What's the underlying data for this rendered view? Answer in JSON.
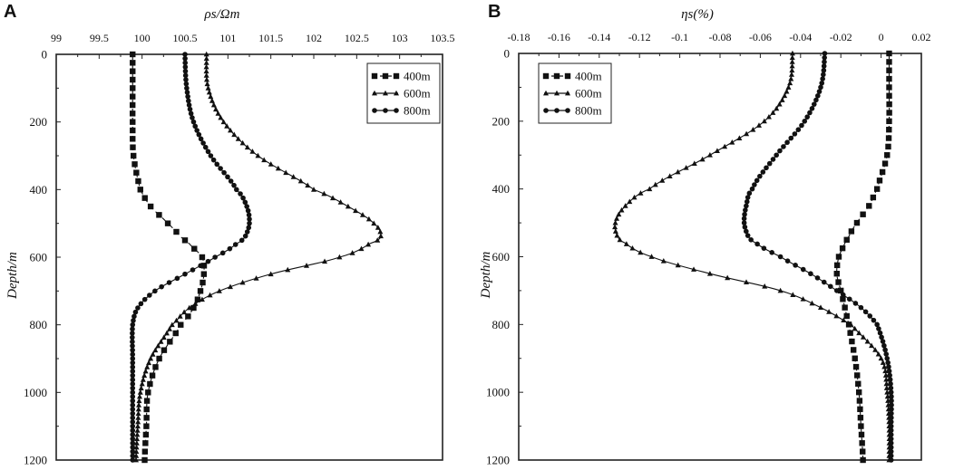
{
  "panel_letters": [
    "A",
    "B"
  ],
  "chart_data": [
    {
      "type": "line",
      "panel": "A",
      "xlabel": "ρs/Ωm",
      "ylabel": "Depth/m",
      "xlim": [
        99,
        103.5
      ],
      "ylim": [
        0,
        1200
      ],
      "y_inverted": true,
      "x_axis_position": "top",
      "xticks": [
        "99",
        "99.5",
        "100",
        "100.5",
        "101",
        "101.5",
        "102",
        "102.5",
        "103",
        "103.5"
      ],
      "yticks": [
        "0",
        "200",
        "400",
        "600",
        "800",
        "1000",
        "1200"
      ],
      "legend_position": "top-right",
      "y": [
        0,
        100,
        200,
        300,
        400,
        450,
        500,
        540,
        560,
        600,
        650,
        700,
        750,
        800,
        900,
        1000,
        1100,
        1200
      ],
      "series": [
        {
          "name": "400m",
          "marker": "square",
          "dash": "6,4",
          "values": [
            99.89,
            99.89,
            99.89,
            99.9,
            99.98,
            100.1,
            100.3,
            100.45,
            100.55,
            100.7,
            100.72,
            100.68,
            100.6,
            100.45,
            100.2,
            100.07,
            100.05,
            100.03
          ]
        },
        {
          "name": "600m",
          "marker": "triangle",
          "dash": "",
          "values": [
            100.75,
            100.77,
            100.95,
            101.35,
            102.0,
            102.4,
            102.7,
            102.78,
            102.65,
            102.3,
            101.5,
            100.9,
            100.55,
            100.35,
            100.1,
            99.98,
            99.95,
            99.93
          ]
        },
        {
          "name": "800m",
          "marker": "circle",
          "dash": "",
          "values": [
            100.5,
            100.52,
            100.6,
            100.8,
            101.1,
            101.22,
            101.25,
            101.2,
            101.1,
            100.85,
            100.5,
            100.15,
            99.95,
            99.89,
            99.89,
            99.89,
            99.89,
            99.89
          ]
        }
      ]
    },
    {
      "type": "line",
      "panel": "B",
      "xlabel": "ηs(%)",
      "ylabel": "Depth/m",
      "xlim": [
        -0.18,
        0.02
      ],
      "ylim": [
        0,
        1200
      ],
      "y_inverted": true,
      "x_axis_position": "top",
      "xticks": [
        "-0.18",
        "-0.16",
        "-0.14",
        "-0.12",
        "-0.1",
        "-0.08",
        "-0.06",
        "-0.04",
        "-0.02",
        "0",
        "0.02"
      ],
      "yticks": [
        "0",
        "200",
        "400",
        "600",
        "800",
        "1000",
        "1200"
      ],
      "legend_position": "top-left",
      "y": [
        0,
        100,
        200,
        300,
        400,
        450,
        500,
        540,
        560,
        600,
        650,
        700,
        750,
        800,
        900,
        1000,
        1100,
        1200
      ],
      "series": [
        {
          "name": "400m",
          "marker": "square",
          "dash": "6,4",
          "values": [
            0.004,
            0.004,
            0.004,
            0.003,
            -0.002,
            -0.006,
            -0.012,
            -0.016,
            -0.018,
            -0.021,
            -0.022,
            -0.02,
            -0.018,
            -0.016,
            -0.013,
            -0.011,
            -0.01,
            -0.009
          ]
        },
        {
          "name": "600m",
          "marker": "triangle",
          "dash": "",
          "values": [
            -0.044,
            -0.046,
            -0.058,
            -0.085,
            -0.115,
            -0.127,
            -0.132,
            -0.131,
            -0.127,
            -0.114,
            -0.085,
            -0.05,
            -0.03,
            -0.015,
            0.0,
            0.003,
            0.004,
            0.004
          ]
        },
        {
          "name": "800m",
          "marker": "circle",
          "dash": "",
          "values": [
            -0.028,
            -0.03,
            -0.038,
            -0.052,
            -0.064,
            -0.067,
            -0.068,
            -0.066,
            -0.062,
            -0.05,
            -0.035,
            -0.022,
            -0.01,
            -0.002,
            0.003,
            0.005,
            0.005,
            0.005
          ]
        }
      ]
    }
  ]
}
